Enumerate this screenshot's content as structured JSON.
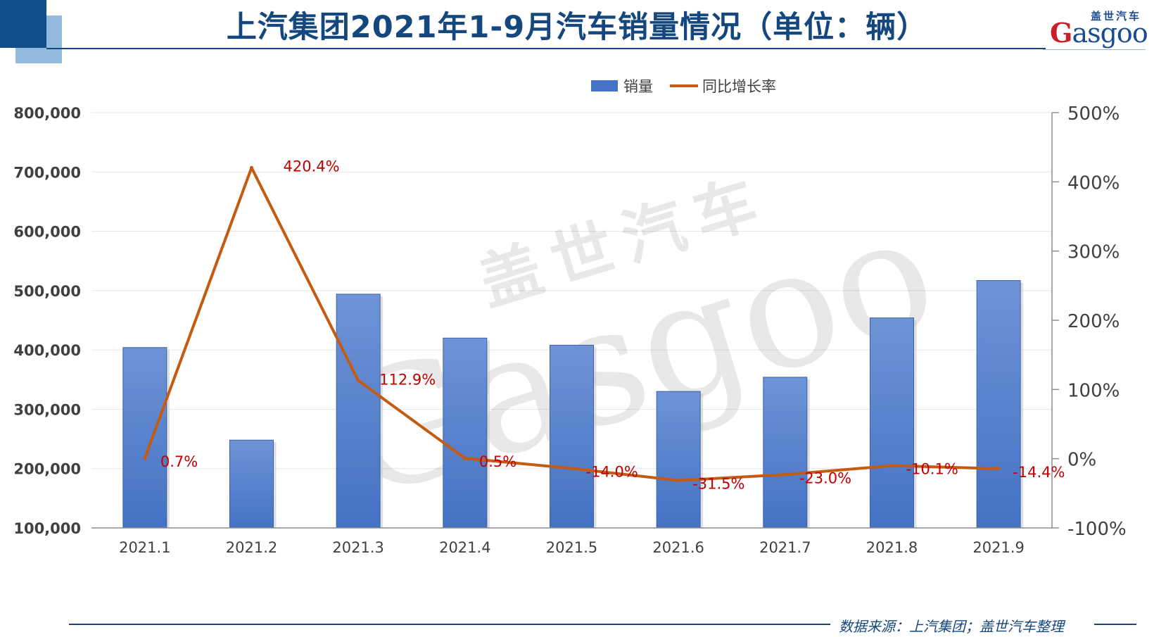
{
  "header": {
    "title": "上汽集团2021年1-9月汽车销量情况（单位：辆）",
    "logo_cn": "盖世汽车",
    "logo_en_initial": "G",
    "logo_en_rest": "asgoo"
  },
  "watermark": {
    "cn": "盖世汽车",
    "en": "Gasgoo"
  },
  "footer": {
    "source": "数据来源：上汽集团；盖世汽车整理"
  },
  "colors": {
    "bar": "#4472c4",
    "line": "#c55a11",
    "label": "#c00000",
    "title": "#15477f"
  },
  "chart_data": {
    "type": "bar",
    "title": "",
    "categories": [
      "2021.1",
      "2021.2",
      "2021.3",
      "2021.4",
      "2021.5",
      "2021.6",
      "2021.7",
      "2021.8",
      "2021.9"
    ],
    "series": [
      {
        "name": "销量",
        "type": "bar",
        "axis": "left",
        "values": [
          404000,
          248000,
          494000,
          420000,
          408000,
          330000,
          354000,
          454000,
          517000
        ]
      },
      {
        "name": "同比增长率",
        "type": "line",
        "axis": "right",
        "unit": "%",
        "values": [
          0.7,
          420.4,
          112.9,
          0.5,
          -14.0,
          -31.5,
          -23.0,
          -10.1,
          -14.4
        ],
        "labels": [
          "0.7%",
          "420.4%",
          "112.9%",
          "0.5%",
          "-14.0%",
          "-31.5%",
          "-23.0%",
          "-10.1%",
          "-14.4%"
        ]
      }
    ],
    "left_axis": {
      "ylim": [
        100000,
        800000
      ],
      "ticks": [
        100000,
        200000,
        300000,
        400000,
        500000,
        600000,
        700000,
        800000
      ],
      "tick_labels": [
        "100,000",
        "200,000",
        "300,000",
        "400,000",
        "500,000",
        "600,000",
        "700,000",
        "800,000"
      ]
    },
    "right_axis": {
      "ylim": [
        -100,
        500
      ],
      "ticks": [
        -100,
        0,
        100,
        200,
        300,
        400,
        500
      ],
      "tick_labels": [
        "-100%",
        "0%",
        "100%",
        "200%",
        "300%",
        "400%",
        "500%"
      ]
    },
    "legend_position": "top-center",
    "grid": true
  }
}
